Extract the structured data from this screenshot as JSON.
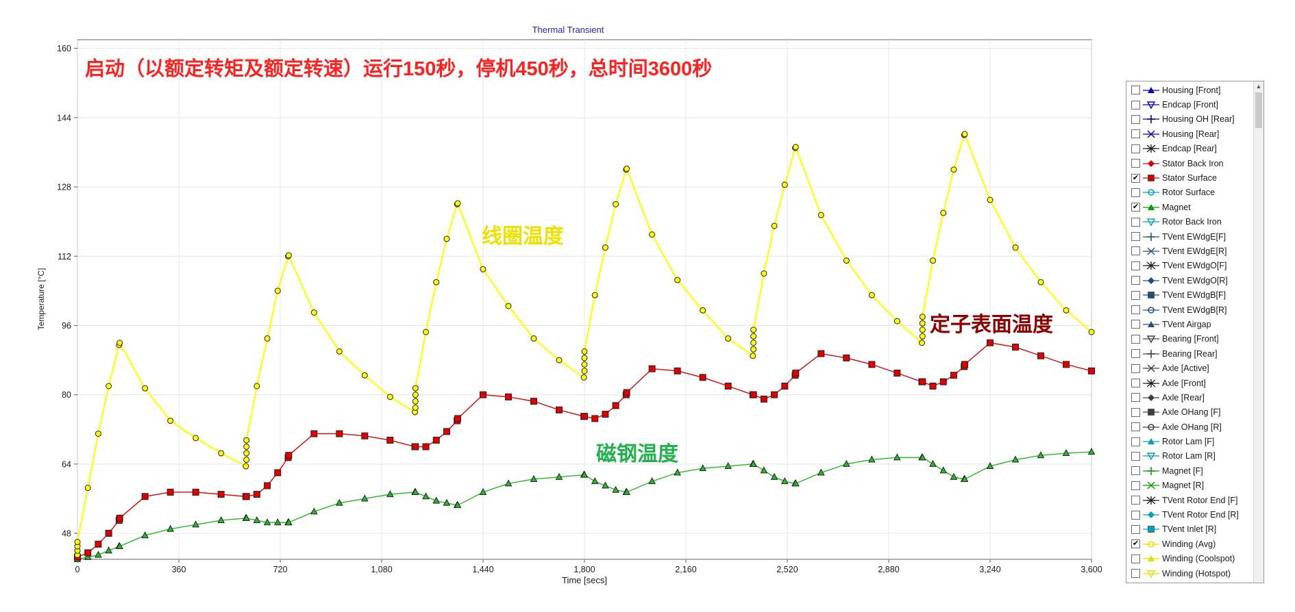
{
  "chart_data": {
    "type": "line",
    "title": "Thermal Transient",
    "xlabel": "Time [secs]",
    "ylabel": "Temperature [°C]",
    "xlim": [
      0,
      3600
    ],
    "ylim": [
      42,
      162
    ],
    "xticks": [
      0,
      360,
      720,
      1080,
      1440,
      1800,
      2160,
      2520,
      2880,
      3240,
      3600
    ],
    "xtick_labels": [
      "0",
      "360",
      "720",
      "1,080",
      "1,440",
      "1,800",
      "2,160",
      "2,520",
      "2,880",
      "3,240",
      "3,600"
    ],
    "yticks": [
      48,
      64,
      80,
      96,
      112,
      128,
      144,
      160
    ],
    "ytick_labels": [
      "48",
      "64",
      "80",
      "96",
      "112",
      "128",
      "144",
      "160"
    ],
    "grid": true,
    "series": [
      {
        "name": "Winding (Avg)",
        "color": "#ffff00",
        "marker": "circle",
        "points": [
          [
            0,
            43
          ],
          [
            0,
            44
          ],
          [
            0,
            45
          ],
          [
            0,
            46
          ],
          [
            37,
            58.5
          ],
          [
            74,
            71
          ],
          [
            111,
            82
          ],
          [
            148,
            91.5
          ],
          [
            150,
            92
          ],
          [
            240,
            81.5
          ],
          [
            330,
            74
          ],
          [
            420,
            70
          ],
          [
            510,
            66.5
          ],
          [
            598,
            63.5
          ],
          [
            600,
            65
          ],
          [
            600,
            66.5
          ],
          [
            600,
            68
          ],
          [
            600,
            69.5
          ],
          [
            637,
            82
          ],
          [
            674,
            93
          ],
          [
            711,
            104
          ],
          [
            748,
            112
          ],
          [
            750,
            112.2
          ],
          [
            840,
            99
          ],
          [
            930,
            90
          ],
          [
            1020,
            84.5
          ],
          [
            1110,
            79.5
          ],
          [
            1198,
            76
          ],
          [
            1200,
            77
          ],
          [
            1200,
            78.5
          ],
          [
            1200,
            80
          ],
          [
            1200,
            81.5
          ],
          [
            1237,
            94.5
          ],
          [
            1274,
            106
          ],
          [
            1311,
            116
          ],
          [
            1348,
            124
          ],
          [
            1350,
            124.2
          ],
          [
            1440,
            109
          ],
          [
            1530,
            100.5
          ],
          [
            1620,
            93
          ],
          [
            1710,
            88
          ],
          [
            1798,
            84
          ],
          [
            1800,
            85.5
          ],
          [
            1800,
            87
          ],
          [
            1800,
            88.5
          ],
          [
            1800,
            90
          ],
          [
            1837,
            103
          ],
          [
            1874,
            114
          ],
          [
            1911,
            124
          ],
          [
            1948,
            132
          ],
          [
            1950,
            132.2
          ],
          [
            2040,
            117
          ],
          [
            2130,
            106.5
          ],
          [
            2220,
            99.5
          ],
          [
            2310,
            93
          ],
          [
            2398,
            89
          ],
          [
            2400,
            90.5
          ],
          [
            2400,
            92
          ],
          [
            2400,
            93.5
          ],
          [
            2400,
            95
          ],
          [
            2437,
            108
          ],
          [
            2474,
            119
          ],
          [
            2511,
            128.5
          ],
          [
            2548,
            137
          ],
          [
            2550,
            137.2
          ],
          [
            2640,
            121.5
          ],
          [
            2730,
            111
          ],
          [
            2820,
            103
          ],
          [
            2910,
            97
          ],
          [
            2998,
            92
          ],
          [
            3000,
            93.5
          ],
          [
            3000,
            95
          ],
          [
            3000,
            96.5
          ],
          [
            3000,
            98
          ],
          [
            3037,
            111
          ],
          [
            3074,
            122
          ],
          [
            3111,
            132
          ],
          [
            3148,
            140
          ],
          [
            3150,
            140.2
          ],
          [
            3240,
            125
          ],
          [
            3330,
            114
          ],
          [
            3420,
            106
          ],
          [
            3510,
            99.5
          ],
          [
            3600,
            94.5
          ]
        ]
      },
      {
        "name": "Stator Surface",
        "color": "#e00000",
        "marker": "square",
        "points": [
          [
            0,
            42.5
          ],
          [
            37,
            43.5
          ],
          [
            74,
            45.5
          ],
          [
            111,
            48
          ],
          [
            148,
            51
          ],
          [
            150,
            51.5
          ],
          [
            240,
            56.5
          ],
          [
            330,
            57.5
          ],
          [
            420,
            57.5
          ],
          [
            510,
            57
          ],
          [
            598,
            56.5
          ],
          [
            600,
            56.5
          ],
          [
            637,
            57
          ],
          [
            674,
            59
          ],
          [
            711,
            62
          ],
          [
            748,
            65.5
          ],
          [
            750,
            66
          ],
          [
            840,
            71
          ],
          [
            930,
            71
          ],
          [
            1020,
            70.5
          ],
          [
            1110,
            69.5
          ],
          [
            1198,
            68
          ],
          [
            1200,
            68
          ],
          [
            1237,
            68
          ],
          [
            1274,
            69.5
          ],
          [
            1311,
            71.5
          ],
          [
            1348,
            74
          ],
          [
            1350,
            74.5
          ],
          [
            1440,
            80
          ],
          [
            1530,
            79.5
          ],
          [
            1620,
            78.5
          ],
          [
            1710,
            76.5
          ],
          [
            1798,
            75
          ],
          [
            1800,
            75
          ],
          [
            1837,
            74.5
          ],
          [
            1874,
            75.5
          ],
          [
            1911,
            77.5
          ],
          [
            1948,
            80
          ],
          [
            1950,
            80.5
          ],
          [
            2040,
            86
          ],
          [
            2130,
            85.5
          ],
          [
            2220,
            84
          ],
          [
            2310,
            82
          ],
          [
            2398,
            80
          ],
          [
            2400,
            80
          ],
          [
            2437,
            79
          ],
          [
            2474,
            80
          ],
          [
            2511,
            82
          ],
          [
            2548,
            84.5
          ],
          [
            2550,
            85
          ],
          [
            2640,
            89.5
          ],
          [
            2730,
            88.5
          ],
          [
            2820,
            87
          ],
          [
            2910,
            85
          ],
          [
            2998,
            83
          ],
          [
            3000,
            83
          ],
          [
            3037,
            82
          ],
          [
            3074,
            83
          ],
          [
            3111,
            84.5
          ],
          [
            3148,
            86.5
          ],
          [
            3150,
            87
          ],
          [
            3240,
            92
          ],
          [
            3330,
            91
          ],
          [
            3420,
            89
          ],
          [
            3510,
            87
          ],
          [
            3600,
            85.5
          ]
        ]
      },
      {
        "name": "Magnet",
        "color": "#27b827",
        "marker": "triangle",
        "points": [
          [
            0,
            42
          ],
          [
            37,
            42.5
          ],
          [
            74,
            43
          ],
          [
            111,
            44
          ],
          [
            148,
            45
          ],
          [
            150,
            45
          ],
          [
            240,
            47.5
          ],
          [
            330,
            49
          ],
          [
            420,
            50
          ],
          [
            510,
            51
          ],
          [
            598,
            51.5
          ],
          [
            600,
            51.5
          ],
          [
            637,
            51
          ],
          [
            674,
            50.5
          ],
          [
            711,
            50.5
          ],
          [
            748,
            50.5
          ],
          [
            750,
            50.5
          ],
          [
            840,
            53
          ],
          [
            930,
            55
          ],
          [
            1020,
            56
          ],
          [
            1110,
            57
          ],
          [
            1198,
            57.5
          ],
          [
            1200,
            57.5
          ],
          [
            1237,
            56.5
          ],
          [
            1274,
            55.5
          ],
          [
            1311,
            55
          ],
          [
            1348,
            54.5
          ],
          [
            1350,
            54.5
          ],
          [
            1440,
            57.5
          ],
          [
            1530,
            59.5
          ],
          [
            1620,
            60.5
          ],
          [
            1710,
            61
          ],
          [
            1798,
            61.5
          ],
          [
            1800,
            61.5
          ],
          [
            1837,
            60
          ],
          [
            1874,
            59
          ],
          [
            1911,
            58
          ],
          [
            1948,
            57.5
          ],
          [
            1950,
            57.5
          ],
          [
            2040,
            60
          ],
          [
            2130,
            62
          ],
          [
            2220,
            63
          ],
          [
            2310,
            63.5
          ],
          [
            2398,
            64
          ],
          [
            2400,
            64
          ],
          [
            2437,
            62.5
          ],
          [
            2474,
            61
          ],
          [
            2511,
            60
          ],
          [
            2548,
            59.5
          ],
          [
            2550,
            59.5
          ],
          [
            2640,
            62
          ],
          [
            2730,
            64
          ],
          [
            2820,
            65
          ],
          [
            2910,
            65.5
          ],
          [
            2998,
            65.5
          ],
          [
            3000,
            65.5
          ],
          [
            3037,
            64
          ],
          [
            3074,
            62.5
          ],
          [
            3111,
            61
          ],
          [
            3148,
            60.5
          ],
          [
            3150,
            60.5
          ],
          [
            3240,
            63.5
          ],
          [
            3330,
            65
          ],
          [
            3420,
            66
          ],
          [
            3510,
            66.5
          ],
          [
            3600,
            66.8
          ]
        ]
      }
    ],
    "annotations": [
      {
        "text": "启动（以额定转矩及额定转速）运行150秒，停机450秒，总时间3600秒",
        "color": "#ff2020"
      },
      {
        "text": "线圈温度",
        "color": "#f0e000"
      },
      {
        "text": "定子表面温度",
        "color": "#8b0000"
      },
      {
        "text": "磁钢温度",
        "color": "#22b14c"
      }
    ],
    "legend_position": "right",
    "legend": [
      {
        "label": "Housing [Front]",
        "checked": false,
        "color": "#0000c0",
        "marker": "triangle-up"
      },
      {
        "label": "Endcap [Front]",
        "checked": false,
        "color": "#0000c0",
        "marker": "triangle-down"
      },
      {
        "label": "Housing OH [Rear]",
        "checked": false,
        "color": "#0000c0",
        "marker": "plus"
      },
      {
        "label": "Housing [Rear]",
        "checked": false,
        "color": "#0000c0",
        "marker": "cross"
      },
      {
        "label": "Endcap [Rear]",
        "checked": false,
        "color": "#202020",
        "marker": "star"
      },
      {
        "label": "Stator Back Iron",
        "checked": false,
        "color": "#d00000",
        "marker": "diamond"
      },
      {
        "label": "Stator Surface",
        "checked": true,
        "color": "#d00000",
        "marker": "square"
      },
      {
        "label": "Rotor Surface",
        "checked": false,
        "color": "#00a0c0",
        "marker": "circle"
      },
      {
        "label": "Magnet",
        "checked": true,
        "color": "#00a000",
        "marker": "triangle-up"
      },
      {
        "label": "Rotor Back Iron",
        "checked": false,
        "color": "#00a0c0",
        "marker": "triangle-down"
      },
      {
        "label": "TVent EWdgE[F]",
        "checked": false,
        "color": "#205080",
        "marker": "plus"
      },
      {
        "label": "TVent EWdgE[R]",
        "checked": false,
        "color": "#205080",
        "marker": "cross"
      },
      {
        "label": "TVent EWdgO[F]",
        "checked": false,
        "color": "#202020",
        "marker": "star"
      },
      {
        "label": "TVent EWdgO[R]",
        "checked": false,
        "color": "#205080",
        "marker": "diamond"
      },
      {
        "label": "TVent EWdgB[F]",
        "checked": false,
        "color": "#205080",
        "marker": "square"
      },
      {
        "label": "TVent EWdgB[R]",
        "checked": false,
        "color": "#205080",
        "marker": "circle"
      },
      {
        "label": "TVent Airgap",
        "checked": false,
        "color": "#205080",
        "marker": "triangle-up"
      },
      {
        "label": "Bearing [Front]",
        "checked": false,
        "color": "#404040",
        "marker": "triangle-down"
      },
      {
        "label": "Bearing [Rear]",
        "checked": false,
        "color": "#404040",
        "marker": "plus"
      },
      {
        "label": "Axle [Active]",
        "checked": false,
        "color": "#404040",
        "marker": "cross"
      },
      {
        "label": "Axle [Front]",
        "checked": false,
        "color": "#202020",
        "marker": "star"
      },
      {
        "label": "Axle [Rear]",
        "checked": false,
        "color": "#404040",
        "marker": "diamond"
      },
      {
        "label": "Axle OHang [F]",
        "checked": false,
        "color": "#404040",
        "marker": "square"
      },
      {
        "label": "Axle OHang [R]",
        "checked": false,
        "color": "#404040",
        "marker": "circle"
      },
      {
        "label": "Rotor Lam [F]",
        "checked": false,
        "color": "#00a0c0",
        "marker": "triangle-up"
      },
      {
        "label": "Rotor Lam [R]",
        "checked": false,
        "color": "#00a0c0",
        "marker": "triangle-down"
      },
      {
        "label": "Magnet [F]",
        "checked": false,
        "color": "#00a000",
        "marker": "plus"
      },
      {
        "label": "Magnet [R]",
        "checked": false,
        "color": "#00a000",
        "marker": "cross"
      },
      {
        "label": "TVent Rotor End [F]",
        "checked": false,
        "color": "#202020",
        "marker": "star"
      },
      {
        "label": "TVent Rotor End [R]",
        "checked": false,
        "color": "#00a0c0",
        "marker": "diamond"
      },
      {
        "label": "TVent Inlet [R]",
        "checked": false,
        "color": "#00a0c0",
        "marker": "square"
      },
      {
        "label": "Winding (Avg)",
        "checked": true,
        "color": "#e0e000",
        "marker": "circle"
      },
      {
        "label": "Winding (Coolspot)",
        "checked": false,
        "color": "#e0e000",
        "marker": "triangle-up"
      },
      {
        "label": "Winding (Hotspot)",
        "checked": false,
        "color": "#e0e000",
        "marker": "triangle-down"
      }
    ],
    "legend_checkmark": "✔",
    "scroll_up_glyph": "▲"
  }
}
